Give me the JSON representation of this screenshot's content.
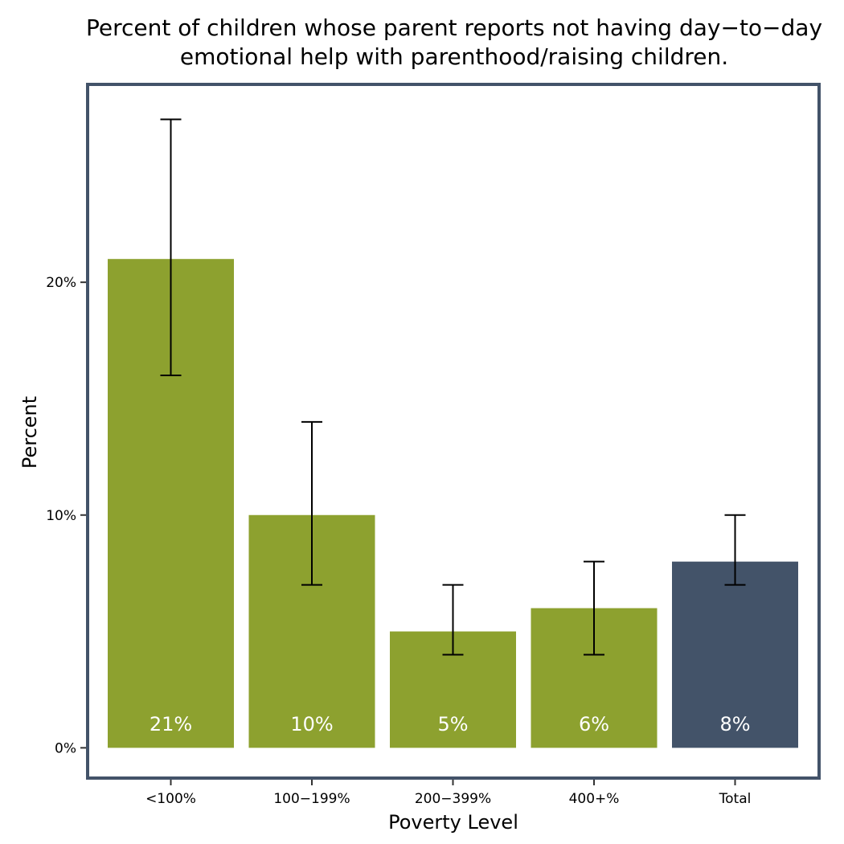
{
  "chart_data": {
    "type": "bar",
    "title_lines": [
      "Percent of children whose parent reports not having day−to−day",
      "emotional help with parenthood/raising children."
    ],
    "xlabel": "Poverty Level",
    "ylabel": "Percent",
    "categories": [
      "<100%",
      "100−199%",
      "200−399%",
      "400+%",
      "Total"
    ],
    "values": [
      21,
      10,
      5,
      6,
      8
    ],
    "data_labels": [
      "21%",
      "10%",
      "5%",
      "6%",
      "8%"
    ],
    "error_low": [
      16,
      7,
      4,
      4,
      7
    ],
    "error_high": [
      27,
      14,
      7,
      8,
      10
    ],
    "ylim": [
      -1.3,
      28.5
    ],
    "yticks": [
      0,
      10,
      20
    ],
    "ytick_labels": [
      "0%",
      "10%",
      "20%"
    ],
    "grid": false,
    "colors": {
      "poverty_bars": "#8da12f",
      "total_bar": "#435369",
      "panel_border": "#435369",
      "error_bars": "#000000"
    }
  }
}
